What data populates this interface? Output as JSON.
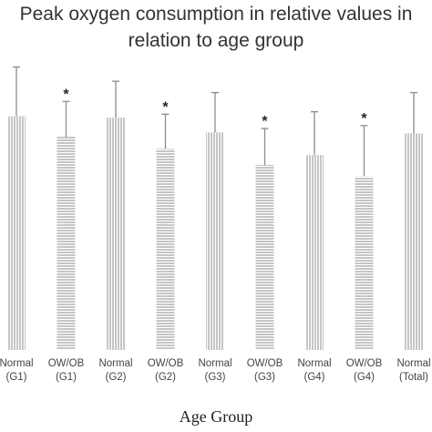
{
  "chart_data": {
    "type": "bar",
    "title_lines": [
      "Peak oxygen consumption in relative values in",
      "relation to age group"
    ],
    "xlabel": "Age Group",
    "ylabel": "",
    "ylim": [
      0,
      60
    ],
    "categories": [
      {
        "line1": "Normal",
        "line2": "(G1)",
        "group": "Normal"
      },
      {
        "line1": "OW/OB",
        "line2": "(G1)",
        "group": "OW/OB"
      },
      {
        "line1": "Normal",
        "line2": "(G2)",
        "group": "Normal"
      },
      {
        "line1": "OW/OB",
        "line2": "(G2)",
        "group": "OW/OB"
      },
      {
        "line1": "Normal",
        "line2": "(G3)",
        "group": "Normal"
      },
      {
        "line1": "OW/OB",
        "line2": "(G3)",
        "group": "OW/OB"
      },
      {
        "line1": "Normal",
        "line2": "(G4)",
        "group": "Normal"
      },
      {
        "line1": "OW/OB",
        "line2": "(G4)",
        "group": "OW/OB"
      },
      {
        "line1": "Normal",
        "line2": "(Total)",
        "group": "Normal"
      }
    ],
    "values": [
      47.5,
      43.3,
      47.2,
      40.9,
      44.2,
      37.6,
      39.6,
      35.3,
      44.0
    ],
    "error_upper": [
      57.5,
      50.5,
      54.6,
      47.9,
      52.3,
      45.0,
      48.4,
      45.6,
      52.3
    ],
    "significance": [
      false,
      true,
      false,
      true,
      false,
      true,
      false,
      true,
      false
    ],
    "significance_marker": "*",
    "patterns": {
      "Normal": "vertical-lines",
      "OW/OB": "horizontal-lines"
    },
    "colors": {
      "bar_lines": "#8c8c8c",
      "error_bar": "#8c8c8c",
      "marker": "#222222"
    }
  }
}
